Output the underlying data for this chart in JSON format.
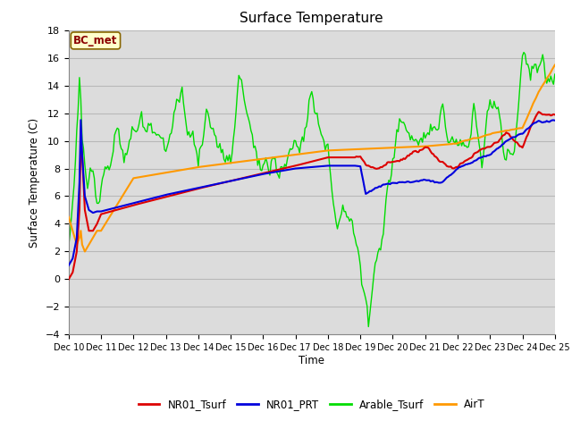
{
  "title": "Surface Temperature",
  "ylabel": "Surface Temperature (C)",
  "xlabel": "Time",
  "ylim": [
    -4,
    18
  ],
  "xlim": [
    0,
    360
  ],
  "x_tick_labels": [
    "Dec 10",
    "Dec 11",
    "Dec 12",
    "Dec 13",
    "Dec 14",
    "Dec 15",
    "Dec 16",
    "Dec 17",
    "Dec 18",
    "Dec 19",
    "Dec 20",
    "Dec 21",
    "Dec 22",
    "Dec 23",
    "Dec 24",
    "Dec 25"
  ],
  "annotation": "BC_met",
  "bg_color": "#dcdcdc",
  "grid_color": "#c8c8c8",
  "colors": {
    "NR01_Tsurf": "#dd0000",
    "NR01_PRT": "#0000dd",
    "Arable_Tsurf": "#00dd00",
    "AirT": "#ff9900"
  },
  "legend_labels": [
    "NR01_Tsurf",
    "NR01_PRT",
    "Arable_Tsurf",
    "AirT"
  ]
}
